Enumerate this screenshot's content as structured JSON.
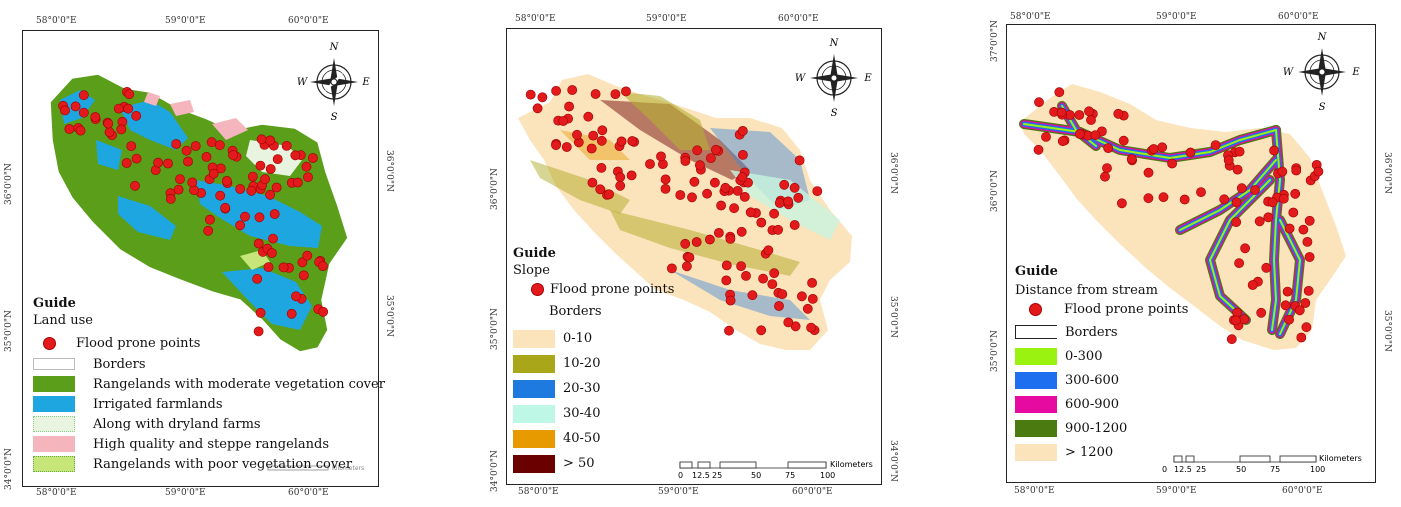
{
  "panels": [
    {
      "coords": {
        "top": [
          "58°0'0\"E",
          "59°0'0\"E",
          "60°0'0\"E"
        ],
        "bottom": [
          "58°0'0\"E",
          "59°0'0\"E",
          "60°0'0\"E"
        ],
        "left": [
          "36°0'0\"N",
          "35°0'0\"N",
          "34°0'0\"N"
        ],
        "right": [
          "36°0'0\"N",
          "35°0'0\"N"
        ]
      },
      "compass": {
        "n": "N",
        "e": "E",
        "s": "S",
        "w": "W"
      },
      "legend": {
        "title": "Guide",
        "subtitle": "Land use",
        "items": [
          {
            "label": "Flood prone points",
            "kind": "dot",
            "color": "#e31a1c"
          },
          {
            "label": "Borders",
            "kind": "outline",
            "color": "#ffffff"
          },
          {
            "label": "Rangelands with moderate vegetation cover",
            "kind": "fill",
            "color": "#5a9e1a"
          },
          {
            "label": "Irrigated farmlands",
            "kind": "fill",
            "color": "#1ea6e0"
          },
          {
            "label": "Along with dryland farms",
            "kind": "dotted",
            "color": "#e8f4e0"
          },
          {
            "label": "High quality and steppe rangelands",
            "kind": "fill",
            "color": "#f4b6bc"
          },
          {
            "label": "Rangelands with poor vegetation cover",
            "kind": "dotted",
            "color": "#c6e67a"
          }
        ]
      },
      "scale_unit": "Kilometers"
    },
    {
      "coords": {
        "top": [
          "58°0'0\"E",
          "59°0'0\"E",
          "60°0'0\"E"
        ],
        "bottom": [
          "58°0'0\"E",
          "59°0'0\"E",
          "60°0'0\"E"
        ],
        "left": [
          "36°0'0\"N",
          "35°0'0\"N",
          "34°0'0\"N"
        ],
        "right": [
          "36°0'0\"N",
          "35°0'0\"N",
          "34°0'0\"N"
        ]
      },
      "compass": {
        "n": "N",
        "e": "E",
        "s": "S",
        "w": "W"
      },
      "legend": {
        "title": "Guide",
        "subtitle": "Slope",
        "items": [
          {
            "label": "Flood prone points",
            "kind": "dot",
            "color": "#e31a1c"
          },
          {
            "label": "Borders",
            "kind": "none",
            "color": "#ffffff"
          },
          {
            "label": "0-10",
            "kind": "fill",
            "color": "#fbe3bb"
          },
          {
            "label": "10-20",
            "kind": "fill",
            "color": "#a9a61a"
          },
          {
            "label": "20-30",
            "kind": "fill",
            "color": "#1f7ae0"
          },
          {
            "label": "30-40",
            "kind": "fill",
            "color": "#bff7e6"
          },
          {
            "label": "40-50",
            "kind": "fill",
            "color": "#e69a00"
          },
          {
            "label": "> 50",
            "kind": "fill",
            "color": "#6b0000"
          }
        ]
      },
      "scale": {
        "ticks": [
          "0",
          "12.5",
          "25",
          "50",
          "75",
          "100"
        ],
        "unit": "Kilometers"
      }
    },
    {
      "coords": {
        "top": [
          "58°0'0\"E",
          "59°0'0\"E",
          "60°0'0\"E"
        ],
        "bottom": [
          "58°0'0\"E",
          "59°0'0\"E",
          "60°0'0\"E"
        ],
        "left": [
          "37°0'0\"N",
          "36°0'0\"N",
          "35°0'0\"N"
        ],
        "right": [
          "36°0'0\"N",
          "35°0'0\"N"
        ]
      },
      "compass": {
        "n": "N",
        "e": "E",
        "s": "S",
        "w": "W"
      },
      "legend": {
        "title": "Guide",
        "subtitle": "Distance from stream",
        "items": [
          {
            "label": "Flood prone points",
            "kind": "dot",
            "color": "#e31a1c"
          },
          {
            "label": "Borders",
            "kind": "outline",
            "color": "#ffffff"
          },
          {
            "label": "0-300",
            "kind": "fill",
            "color": "#99f20f"
          },
          {
            "label": "300-600",
            "kind": "fill",
            "color": "#1e6ff0"
          },
          {
            "label": "600-900",
            "kind": "fill",
            "color": "#e60aa0"
          },
          {
            "label": "900-1200",
            "kind": "fill",
            "color": "#4a7a10"
          },
          {
            "label": "> 1200",
            "kind": "fill",
            "color": "#fbe3bb"
          }
        ]
      },
      "scale": {
        "ticks": [
          "0",
          "12.5",
          "25",
          "50",
          "75",
          "100"
        ],
        "unit": "Kilometers"
      }
    }
  ]
}
